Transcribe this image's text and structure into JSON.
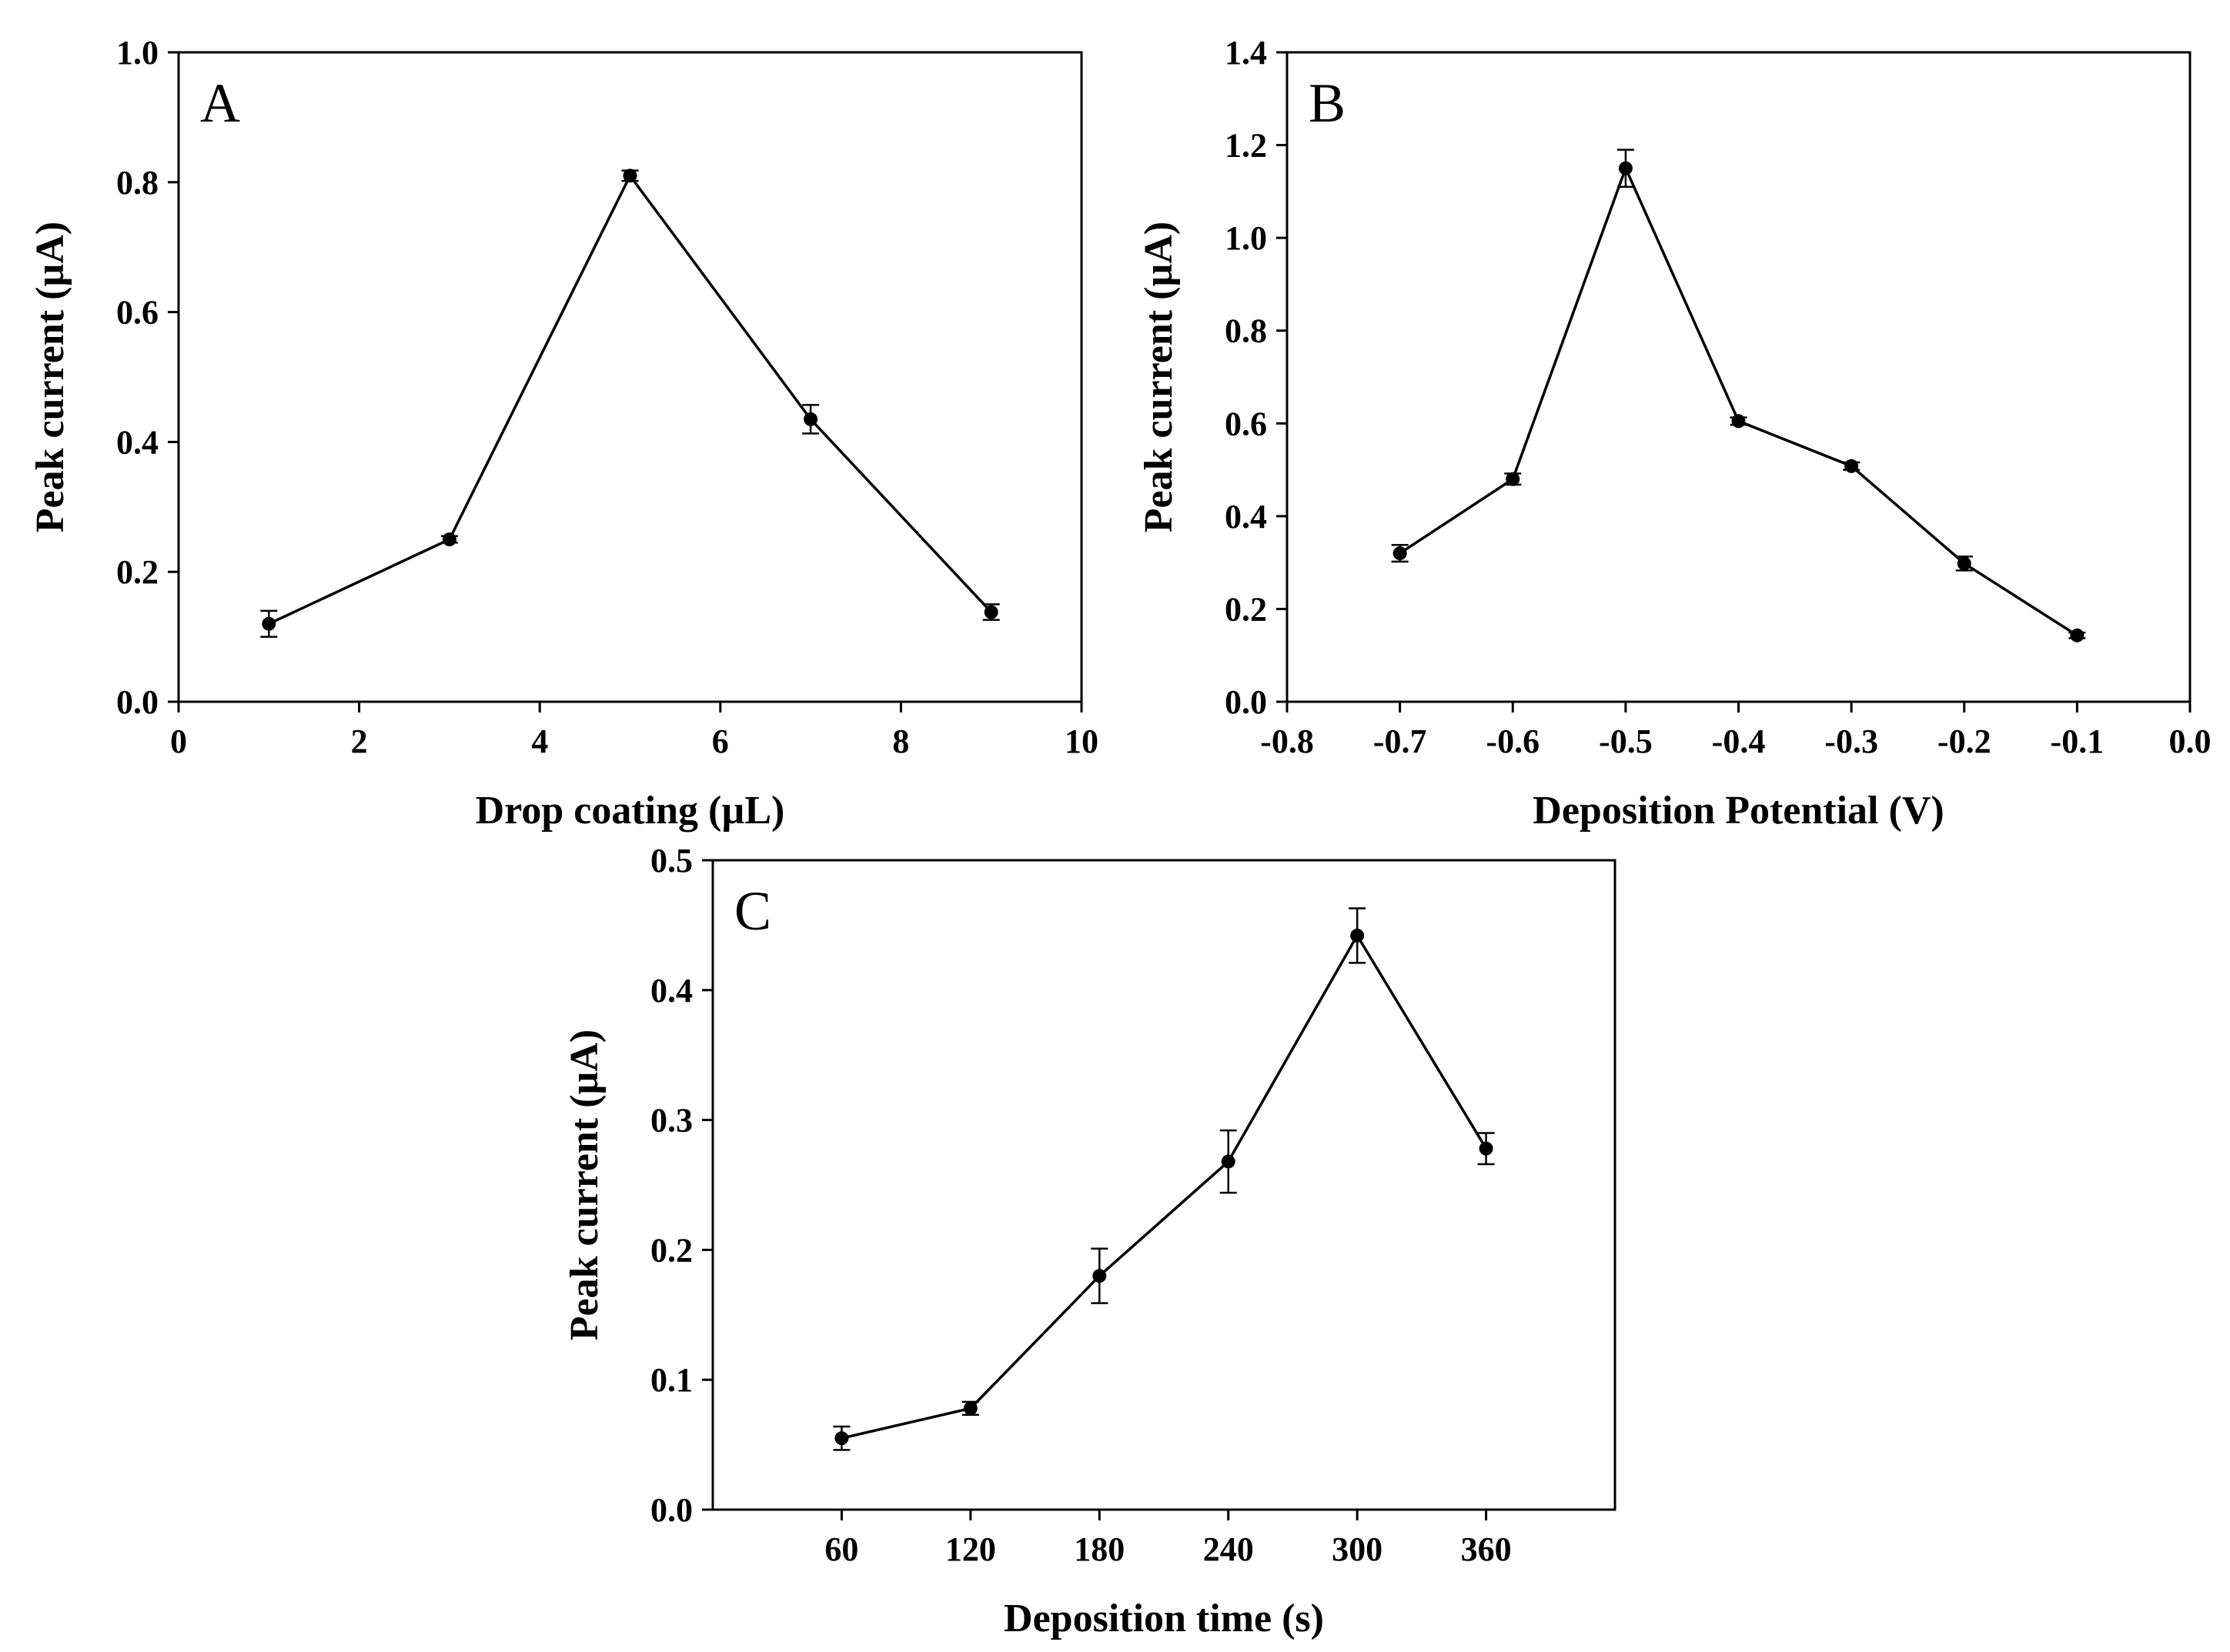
{
  "chart_data": [
    {
      "type": "line",
      "panel_label": "A",
      "xlabel": "Drop coating (µL)",
      "ylabel": "Peak current (µA)",
      "xlim": [
        0,
        10
      ],
      "ylim": [
        0,
        1.0
      ],
      "xticks": [
        0,
        2,
        4,
        6,
        8,
        10
      ],
      "xtick_labels": [
        "0",
        "2",
        "4",
        "6",
        "8",
        "10"
      ],
      "yticks": [
        0,
        0.2,
        0.4,
        0.6,
        0.8,
        1.0
      ],
      "ytick_labels": [
        "0.0",
        "0.2",
        "0.4",
        "0.6",
        "0.8",
        "1.0"
      ],
      "grid": false,
      "series": [
        {
          "name": "Peak current",
          "x": [
            1,
            3,
            5,
            7,
            9
          ],
          "y": [
            0.12,
            0.25,
            0.81,
            0.435,
            0.138
          ],
          "err": [
            0.02,
            0.005,
            0.008,
            0.022,
            0.012
          ]
        }
      ]
    },
    {
      "type": "line",
      "panel_label": "B",
      "xlabel": "Deposition Potential (V)",
      "ylabel": "Peak current (µA)",
      "xlim": [
        -0.8,
        0.0
      ],
      "ylim": [
        0,
        1.4
      ],
      "xticks": [
        -0.8,
        -0.7,
        -0.6,
        -0.5,
        -0.4,
        -0.3,
        -0.2,
        -0.1,
        0.0
      ],
      "xtick_labels": [
        "-0.8",
        "-0.7",
        "-0.6",
        "-0.5",
        "-0.4",
        "-0.3",
        "-0.2",
        "-0.1",
        "0.0"
      ],
      "yticks": [
        0,
        0.2,
        0.4,
        0.6,
        0.8,
        1.0,
        1.2,
        1.4
      ],
      "ytick_labels": [
        "0.0",
        "0.2",
        "0.4",
        "0.6",
        "0.8",
        "1.0",
        "1.2",
        "1.4"
      ],
      "grid": false,
      "series": [
        {
          "name": "Peak current",
          "x": [
            -0.7,
            -0.6,
            -0.5,
            -0.4,
            -0.3,
            -0.2,
            -0.1
          ],
          "y": [
            0.32,
            0.48,
            1.15,
            0.605,
            0.508,
            0.298,
            0.143
          ],
          "err": [
            0.018,
            0.012,
            0.04,
            0.008,
            0.008,
            0.015,
            0.006
          ]
        }
      ]
    },
    {
      "type": "line",
      "panel_label": "C",
      "xlabel": "Deposition time (s)",
      "ylabel": "Peak current (µA)",
      "xlim": [
        0,
        420
      ],
      "ylim": [
        0,
        0.5
      ],
      "xticks": [
        60,
        120,
        180,
        240,
        300,
        360
      ],
      "xtick_labels": [
        "60",
        "120",
        "180",
        "240",
        "300",
        "360"
      ],
      "yticks": [
        0,
        0.1,
        0.2,
        0.3,
        0.4,
        0.5
      ],
      "ytick_labels": [
        "0.0",
        "0.1",
        "0.2",
        "0.3",
        "0.4",
        "0.5"
      ],
      "grid": false,
      "series": [
        {
          "name": "Peak current",
          "x": [
            60,
            120,
            180,
            240,
            300,
            360
          ],
          "y": [
            0.055,
            0.078,
            0.18,
            0.268,
            0.442,
            0.278
          ],
          "err": [
            0.009,
            0.005,
            0.021,
            0.024,
            0.021,
            0.012
          ]
        }
      ]
    }
  ]
}
